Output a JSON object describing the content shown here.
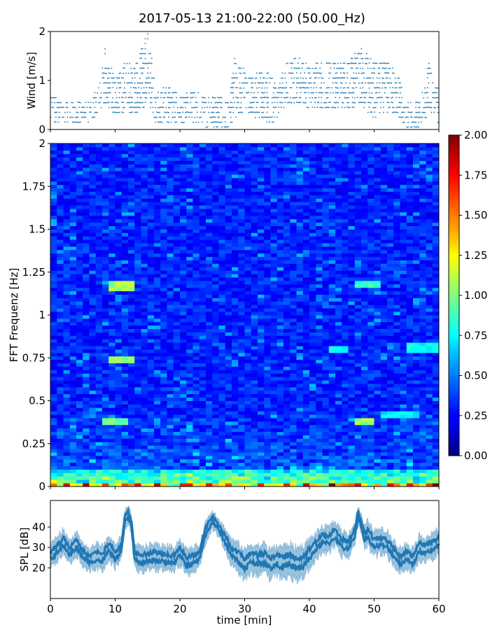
{
  "figure": {
    "title": "2017-05-13 21:00-22:00 (50.00_Hz)"
  },
  "chart_data": [
    {
      "type": "scatter",
      "id": "wind",
      "title": "",
      "xlabel": "",
      "ylabel": "Wind [m/s]",
      "xlim": [
        0,
        60
      ],
      "ylim": [
        0,
        2
      ],
      "yticks": [
        0,
        1,
        2
      ],
      "marker_color": "#1f77b4",
      "envelope": {
        "t": [
          0,
          2,
          4,
          6,
          7.5,
          8.5,
          10,
          11.5,
          13,
          15,
          16.5,
          18,
          20,
          22,
          24,
          26,
          27.5,
          28.5,
          29.5,
          31,
          32,
          33.5,
          35,
          36.5,
          38,
          40,
          42,
          44,
          46,
          48,
          50,
          52,
          53.5,
          55,
          57,
          58.5,
          60
        ],
        "high": [
          0.7,
          0.6,
          0.55,
          0.6,
          0.9,
          1.7,
          1.0,
          1.4,
          1.3,
          2.0,
          0.8,
          0.9,
          0.7,
          0.8,
          0.7,
          0.7,
          0.6,
          1.5,
          1.3,
          1.1,
          1.2,
          1.2,
          0.9,
          1.4,
          1.5,
          1.4,
          1.35,
          1.4,
          1.4,
          1.7,
          1.4,
          1.4,
          1.2,
          0.6,
          0.55,
          1.4,
          0.8
        ],
        "low": [
          0.05,
          0.1,
          0.1,
          0.15,
          0.3,
          0.5,
          0.3,
          0.35,
          0.3,
          0.5,
          0.05,
          0.1,
          0.05,
          0.1,
          0.05,
          0.05,
          0.05,
          0.2,
          0.3,
          0.3,
          0.2,
          0.05,
          0.2,
          0.5,
          0.5,
          0.4,
          0.4,
          0.4,
          0.4,
          0.5,
          0.2,
          0.3,
          0.3,
          0.05,
          0.05,
          0.3,
          0.1
        ]
      }
    },
    {
      "type": "heatmap",
      "id": "spectrogram",
      "xlabel": "",
      "ylabel": "FFT Frequenz [Hz]",
      "xlim": [
        0,
        60
      ],
      "ylim": [
        0,
        2
      ],
      "yticks": [
        0,
        0.25,
        0.5,
        0.75,
        1,
        1.25,
        1.5,
        1.75,
        2
      ],
      "ytick_labels": [
        "0",
        "0.25",
        "0.5",
        "0.75",
        "1",
        "1.25",
        "1.5",
        "1.75",
        "2"
      ],
      "colormap": "jet",
      "time_bins": 60,
      "freq_bins": 100,
      "hotspots": [
        {
          "t_start": 8,
          "t_end": 12,
          "f": 0.38,
          "value": 1.0
        },
        {
          "t_start": 9.5,
          "t_end": 12.5,
          "f": 0.74,
          "value": 1.05
        },
        {
          "t_start": 9.5,
          "t_end": 12.5,
          "f": 1.17,
          "value": 1.1
        },
        {
          "t_start": 47,
          "t_end": 50,
          "f": 0.38,
          "value": 1.1
        },
        {
          "t_start": 47,
          "t_end": 51,
          "f": 1.18,
          "value": 0.9
        },
        {
          "t_start": 43,
          "t_end": 46,
          "f": 0.8,
          "value": 0.8
        },
        {
          "t_start": 55,
          "t_end": 60,
          "f": 0.81,
          "value": 0.8
        },
        {
          "t_start": 51,
          "t_end": 57,
          "f": 0.42,
          "value": 0.75
        }
      ],
      "low_freq_band": {
        "f_max": 0.1,
        "peak_value": 2.0
      }
    },
    {
      "type": "colorbar",
      "id": "colorbar",
      "range": [
        0,
        2
      ],
      "ticks": [
        0,
        0.25,
        0.5,
        0.75,
        1,
        1.25,
        1.5,
        1.75,
        2
      ],
      "tick_labels": [
        "0.00",
        "0.25",
        "0.50",
        "0.75",
        "1.00",
        "1.25",
        "1.50",
        "1.75",
        "2.00"
      ]
    },
    {
      "type": "area",
      "id": "spl",
      "xlabel": "time [min]",
      "ylabel": "SPL [dB]",
      "xlim": [
        0,
        60
      ],
      "ylim": [
        5,
        53
      ],
      "yticks": [
        20,
        30,
        40
      ],
      "xticks": [
        0,
        10,
        20,
        30,
        40,
        50,
        60
      ],
      "color": "#1f77b4",
      "t": [
        0,
        1,
        2,
        3,
        4,
        5,
        6,
        7,
        8,
        9,
        10,
        11,
        11.5,
        12,
        12.5,
        13,
        14,
        15,
        16,
        17,
        18,
        19,
        20,
        21,
        22,
        23,
        24,
        25,
        26,
        27,
        28,
        29,
        30,
        31,
        32,
        33,
        34,
        35,
        36,
        37,
        38,
        39,
        40,
        41,
        42,
        43,
        44,
        45,
        46,
        47,
        47.5,
        48,
        48.5,
        49,
        50,
        51,
        52,
        53,
        54,
        55,
        56,
        57,
        58,
        59,
        60
      ],
      "mean": [
        26,
        29,
        33,
        28,
        32,
        27,
        24,
        26,
        25,
        30,
        26,
        30,
        44,
        46,
        42,
        26,
        24,
        25,
        26,
        25,
        25,
        24,
        28,
        23,
        24,
        26,
        38,
        44,
        40,
        34,
        28,
        25,
        22,
        25,
        24,
        25,
        22,
        24,
        23,
        24,
        22,
        23,
        27,
        31,
        34,
        34,
        37,
        32,
        31,
        37,
        46,
        42,
        35,
        37,
        32,
        33,
        32,
        28,
        24,
        26,
        24,
        30,
        29,
        31,
        33
      ],
      "spread": [
        6,
        7,
        7,
        6,
        7,
        6,
        6,
        7,
        7,
        6,
        7,
        6,
        5,
        5,
        5,
        7,
        7,
        7,
        7,
        7,
        7,
        7,
        7,
        7,
        7,
        6,
        6,
        5,
        5,
        6,
        7,
        8,
        8,
        8,
        8,
        8,
        8,
        8,
        9,
        9,
        9,
        9,
        8,
        7,
        7,
        7,
        7,
        7,
        7,
        6,
        5,
        5,
        6,
        7,
        7,
        7,
        7,
        7,
        7,
        7,
        7,
        7,
        7,
        7,
        7
      ]
    }
  ]
}
